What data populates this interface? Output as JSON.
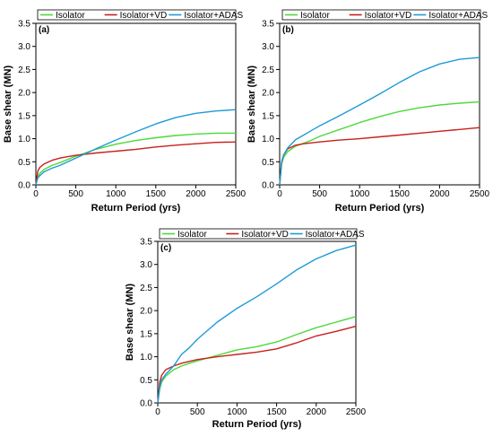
{
  "legend_entries": [
    {
      "name": "Isolator",
      "color": "#4CD93A"
    },
    {
      "name": "Isolator+VD",
      "color": "#C8201E"
    },
    {
      "name": "Isolator+ADAS",
      "color": "#1E9AD6"
    }
  ],
  "chart_data": [
    {
      "type": "line",
      "panel_label": "(a)",
      "xlabel": "Return Period (yrs)",
      "ylabel": "Base shear (MN)",
      "xlim": [
        0,
        2500
      ],
      "ylim": [
        0,
        3.5
      ],
      "xticks": [
        0,
        500,
        1000,
        1500,
        2000,
        2500
      ],
      "yticks": [
        0.0,
        0.5,
        1.0,
        1.5,
        2.0,
        2.5,
        3.0,
        3.5
      ],
      "xtick_labels": [
        "0",
        "500",
        "1000",
        "1500",
        "2000",
        "2500"
      ],
      "ytick_labels": [
        "0.0",
        "0.5",
        "1.0",
        "1.5",
        "2.0",
        "2.5",
        "3.0",
        "3.5"
      ],
      "legend_position": "top",
      "grid": false,
      "series": [
        {
          "name": "Isolator",
          "color": "#4CD93A",
          "x": [
            0,
            25,
            50,
            100,
            200,
            300,
            400,
            500,
            750,
            1000,
            1250,
            1500,
            1750,
            2000,
            2250,
            2500
          ],
          "y": [
            0.0,
            0.18,
            0.25,
            0.33,
            0.42,
            0.48,
            0.55,
            0.62,
            0.77,
            0.88,
            0.96,
            1.02,
            1.07,
            1.1,
            1.12,
            1.12
          ]
        },
        {
          "name": "Isolator+VD",
          "color": "#C8201E",
          "x": [
            0,
            25,
            50,
            100,
            200,
            300,
            400,
            500,
            750,
            1000,
            1250,
            1500,
            1750,
            2000,
            2250,
            2500
          ],
          "y": [
            0.0,
            0.3,
            0.38,
            0.45,
            0.53,
            0.58,
            0.61,
            0.64,
            0.69,
            0.73,
            0.77,
            0.82,
            0.86,
            0.89,
            0.92,
            0.93
          ]
        },
        {
          "name": "Isolator+ADAS",
          "color": "#1E9AD6",
          "x": [
            0,
            25,
            50,
            100,
            200,
            300,
            400,
            500,
            750,
            1000,
            1250,
            1500,
            1750,
            2000,
            2250,
            2500
          ],
          "y": [
            0.0,
            0.15,
            0.2,
            0.28,
            0.36,
            0.42,
            0.5,
            0.58,
            0.78,
            0.97,
            1.15,
            1.32,
            1.46,
            1.55,
            1.6,
            1.63
          ]
        }
      ]
    },
    {
      "type": "line",
      "panel_label": "(b)",
      "xlabel": "Return Period (yrs)",
      "ylabel": "Base shear (MN)",
      "xlim": [
        0,
        2500
      ],
      "ylim": [
        0,
        3.5
      ],
      "xticks": [
        0,
        500,
        1000,
        1500,
        2000,
        2500
      ],
      "yticks": [
        0.0,
        0.5,
        1.0,
        1.5,
        2.0,
        2.5,
        3.0,
        3.5
      ],
      "xtick_labels": [
        "0",
        "500",
        "1000",
        "1500",
        "2000",
        "2500"
      ],
      "ytick_labels": [
        "0.0",
        "0.5",
        "1.0",
        "1.5",
        "2.0",
        "2.5",
        "3.0",
        "3.5"
      ],
      "legend_position": "top",
      "grid": false,
      "series": [
        {
          "name": "Isolator",
          "color": "#4CD93A",
          "x": [
            0,
            25,
            50,
            100,
            200,
            300,
            400,
            500,
            750,
            1000,
            1250,
            1500,
            1750,
            2000,
            2250,
            2500
          ],
          "y": [
            0.0,
            0.45,
            0.6,
            0.72,
            0.84,
            0.9,
            0.97,
            1.05,
            1.2,
            1.35,
            1.48,
            1.59,
            1.67,
            1.73,
            1.77,
            1.8
          ]
        },
        {
          "name": "Isolator+VD",
          "color": "#C8201E",
          "x": [
            0,
            25,
            50,
            100,
            200,
            300,
            400,
            500,
            750,
            1000,
            1250,
            1500,
            1750,
            2000,
            2250,
            2500
          ],
          "y": [
            0.0,
            0.5,
            0.65,
            0.78,
            0.86,
            0.89,
            0.91,
            0.93,
            0.97,
            1.0,
            1.04,
            1.08,
            1.12,
            1.16,
            1.2,
            1.24
          ]
        },
        {
          "name": "Isolator+ADAS",
          "color": "#1E9AD6",
          "x": [
            0,
            25,
            50,
            100,
            200,
            300,
            400,
            500,
            750,
            1000,
            1250,
            1500,
            1750,
            2000,
            2250,
            2500
          ],
          "y": [
            0.0,
            0.5,
            0.65,
            0.8,
            0.98,
            1.08,
            1.18,
            1.28,
            1.5,
            1.73,
            1.97,
            2.22,
            2.45,
            2.62,
            2.72,
            2.76
          ]
        }
      ]
    },
    {
      "type": "line",
      "panel_label": "(c)",
      "xlabel": "Return Period (yrs)",
      "ylabel": "Base shear (MN)",
      "xlim": [
        0,
        2500
      ],
      "ylim": [
        0,
        3.5
      ],
      "xticks": [
        0,
        500,
        1000,
        1500,
        2000,
        2500
      ],
      "yticks": [
        0.0,
        0.5,
        1.0,
        1.5,
        2.0,
        2.5,
        3.0,
        3.5
      ],
      "xtick_labels": [
        "0",
        "500",
        "1000",
        "1500",
        "2000",
        "2500"
      ],
      "ytick_labels": [
        "0.0",
        "0.5",
        "1.0",
        "1.5",
        "2.0",
        "2.5",
        "3.0",
        "3.5"
      ],
      "legend_position": "top",
      "grid": false,
      "series": [
        {
          "name": "Isolator",
          "color": "#4CD93A",
          "x": [
            0,
            25,
            50,
            100,
            200,
            300,
            400,
            500,
            750,
            1000,
            1250,
            1500,
            1750,
            2000,
            2250,
            2500
          ],
          "y": [
            0.0,
            0.3,
            0.45,
            0.58,
            0.72,
            0.8,
            0.86,
            0.91,
            1.03,
            1.15,
            1.22,
            1.32,
            1.48,
            1.63,
            1.75,
            1.87
          ]
        },
        {
          "name": "Isolator+VD",
          "color": "#C8201E",
          "x": [
            0,
            25,
            50,
            100,
            200,
            300,
            400,
            500,
            750,
            1000,
            1250,
            1500,
            1750,
            2000,
            2250,
            2500
          ],
          "y": [
            0.0,
            0.45,
            0.6,
            0.72,
            0.8,
            0.86,
            0.9,
            0.94,
            1.0,
            1.05,
            1.1,
            1.17,
            1.3,
            1.45,
            1.55,
            1.66
          ]
        },
        {
          "name": "Isolator+ADAS",
          "color": "#1E9AD6",
          "x": [
            0,
            25,
            50,
            100,
            200,
            300,
            400,
            500,
            750,
            1000,
            1250,
            1500,
            1750,
            2000,
            2250,
            2500
          ],
          "y": [
            0.0,
            0.35,
            0.5,
            0.62,
            0.8,
            1.05,
            1.2,
            1.38,
            1.75,
            2.05,
            2.3,
            2.58,
            2.88,
            3.12,
            3.3,
            3.42
          ]
        }
      ]
    }
  ]
}
